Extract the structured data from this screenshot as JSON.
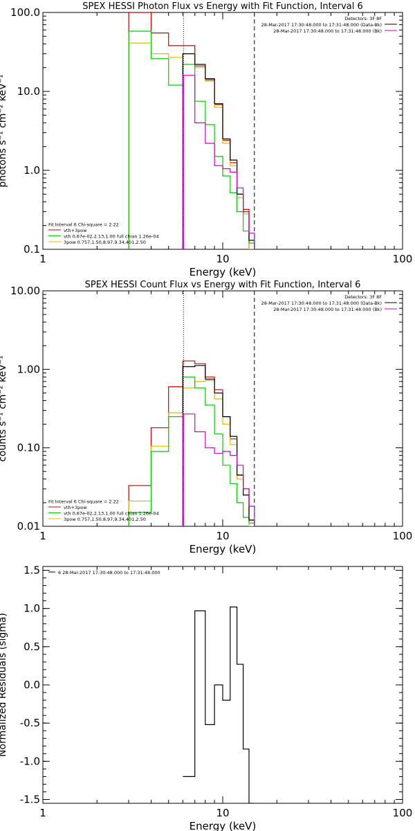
{
  "chart_data": [
    {
      "type": "line",
      "step": true,
      "title": "SPEX HESSI Photon Flux vs Energy with Fit Function, Interval 6",
      "xlabel": "Energy (keV)",
      "ylabel": "photons s⁻¹ cm⁻² keV⁻¹",
      "xscale": "log",
      "yscale": "log",
      "xlim": [
        1,
        100
      ],
      "ylim": [
        0.1,
        100
      ],
      "xticks": [
        "1",
        "10",
        "100"
      ],
      "yticks": [
        "0.1",
        "1.0",
        "10.0",
        "100.0"
      ],
      "edges": [
        3,
        4,
        5,
        6,
        7,
        8,
        9,
        10,
        11,
        12,
        13,
        14,
        15
      ],
      "vlines": {
        "dotted": 6.05,
        "dashed": 15,
        "magenta": 6.05
      },
      "legend_top": [
        {
          "text": "Detectors: 3F 8F",
          "color": ""
        },
        {
          "text": "28-Mar-2017 17:30:48.000 to 17:31:48.000 (Data-Bk)",
          "color": "#000000"
        },
        {
          "text": "28-Mar-2017 17:30:48.000 to 17:31:48.000 (Bk)",
          "color": "#cc00cc"
        }
      ],
      "legend_bottom": [
        {
          "text": "Fit Interval  6    Chi-square = 2.22",
          "color": ""
        },
        {
          "text": "vth+3pow",
          "color": "#cc0000"
        },
        {
          "text": "vth 0.67e-02,2.13,1.00  full chian 1.26e-04",
          "color": "#00cc00"
        },
        {
          "text": "3pow 0.757,1.50,8.97,9.34,401,2.50",
          "color": "#ddbb00"
        }
      ],
      "series": [
        {
          "color": "#cc0000",
          "values": [
            100,
            55,
            38,
            38,
            21,
            14,
            6.8,
            2.4,
            1.25,
            0.5,
            0.32,
            0.1
          ]
        },
        {
          "color": "#ddbb00",
          "values": [
            41,
            30,
            27,
            30,
            20,
            13.5,
            6.3,
            2.2,
            1.15,
            0.45,
            0.28,
            0.1
          ]
        },
        {
          "color": "#00cc00",
          "values": [
            58,
            26,
            12,
            22,
            7.5,
            3.8,
            1.5,
            0.85,
            0.52,
            0.3,
            0.17,
            0.12
          ]
        },
        {
          "color": "#000000",
          "values": [
            null,
            null,
            null,
            30,
            22,
            14.5,
            7,
            2.5,
            1.35,
            0.5,
            0.3,
            0.13
          ]
        },
        {
          "color": "#cc00cc",
          "values": [
            null,
            null,
            null,
            16,
            4,
            2.2,
            1.15,
            1.05,
            0.95,
            0.6,
            0.3,
            0.16
          ]
        }
      ]
    },
    {
      "type": "line",
      "step": true,
      "title": "SPEX HESSI Count Flux vs Energy with Fit Function, Interval 6",
      "xlabel": "Energy (keV)",
      "ylabel": "counts s⁻¹ cm⁻² keV⁻¹",
      "xscale": "log",
      "yscale": "log",
      "xlim": [
        1,
        100
      ],
      "ylim": [
        0.01,
        10
      ],
      "xticks": [
        "1",
        "10",
        "100"
      ],
      "yticks": [
        "0.01",
        "0.10",
        "1.00",
        "10.00"
      ],
      "edges": [
        3,
        4,
        5,
        6,
        7,
        8,
        9,
        10,
        11,
        12,
        13,
        14,
        15
      ],
      "vlines": {
        "dotted": 6.05,
        "dashed": 15,
        "magenta": 6.05
      },
      "legend_top": [
        {
          "text": "Detectors: 3F 8F",
          "color": ""
        },
        {
          "text": "28-Mar-2017 17:30:48.000 to 17:31:48.000 (Data-Bk)",
          "color": "#000000"
        },
        {
          "text": "28-Mar-2017 17:30:48.000 to 17:31:48.000 (Bk)",
          "color": "#cc00cc"
        }
      ],
      "legend_bottom": [
        {
          "text": "Fit Interval  6    Chi-square = 2.22",
          "color": ""
        },
        {
          "text": "vth+3pow",
          "color": "#cc0000"
        },
        {
          "text": "vth 0.67e-02,2.13,1.00  full chian 1.26e-04",
          "color": "#00cc00"
        },
        {
          "text": "3pow 0.757,1.50,8.97,9.34,401,2.50",
          "color": "#ddbb00"
        }
      ],
      "series": [
        {
          "color": "#cc0000",
          "values": [
            0.033,
            0.18,
            0.6,
            1.28,
            1.18,
            0.8,
            0.55,
            0.25,
            0.13,
            0.045,
            0.03,
            0.012
          ]
        },
        {
          "color": "#ddbb00",
          "values": [
            0.021,
            0.105,
            0.28,
            0.58,
            0.7,
            0.72,
            0.42,
            0.2,
            0.11,
            0.04,
            0.025,
            0.01
          ]
        },
        {
          "color": "#00cc00",
          "values": [
            0.015,
            0.09,
            0.25,
            0.8,
            0.58,
            0.35,
            0.15,
            0.06,
            0.035,
            0.02,
            0.013,
            0.011
          ]
        },
        {
          "color": "#000000",
          "values": [
            null,
            null,
            null,
            1.08,
            1.12,
            0.75,
            0.5,
            0.25,
            0.14,
            0.045,
            0.025,
            0.012
          ]
        },
        {
          "color": "#cc00cc",
          "values": [
            null,
            null,
            null,
            0.27,
            0.16,
            0.1,
            0.085,
            0.09,
            0.08,
            0.06,
            0.03,
            0.018
          ]
        }
      ]
    },
    {
      "type": "line",
      "step": true,
      "title": "",
      "xlabel": "Energy (keV)",
      "ylabel": "Normalized Residuals (sigma)",
      "xscale": "log",
      "yscale": "linear",
      "xlim": [
        1,
        100
      ],
      "ylim": [
        -1.55,
        1.55
      ],
      "xticks": [
        "1",
        "10",
        "100"
      ],
      "yticks": [
        "-1.5",
        "-1.0",
        "-0.5",
        "0.0",
        "0.5",
        "1.0",
        "1.5"
      ],
      "edges": [
        6,
        7,
        8,
        9,
        10,
        11,
        12,
        13,
        14,
        15
      ],
      "legend_top": [
        {
          "text": "6  28-Mar-2017 17:30:48.000 to 17:31:48.000",
          "color": "#000000"
        }
      ],
      "series": [
        {
          "color": "#000000",
          "values": [
            -1.2,
            0.97,
            -0.52,
            0.0,
            -0.2,
            1.02,
            0.27,
            -0.84,
            -1.55
          ]
        }
      ]
    }
  ]
}
